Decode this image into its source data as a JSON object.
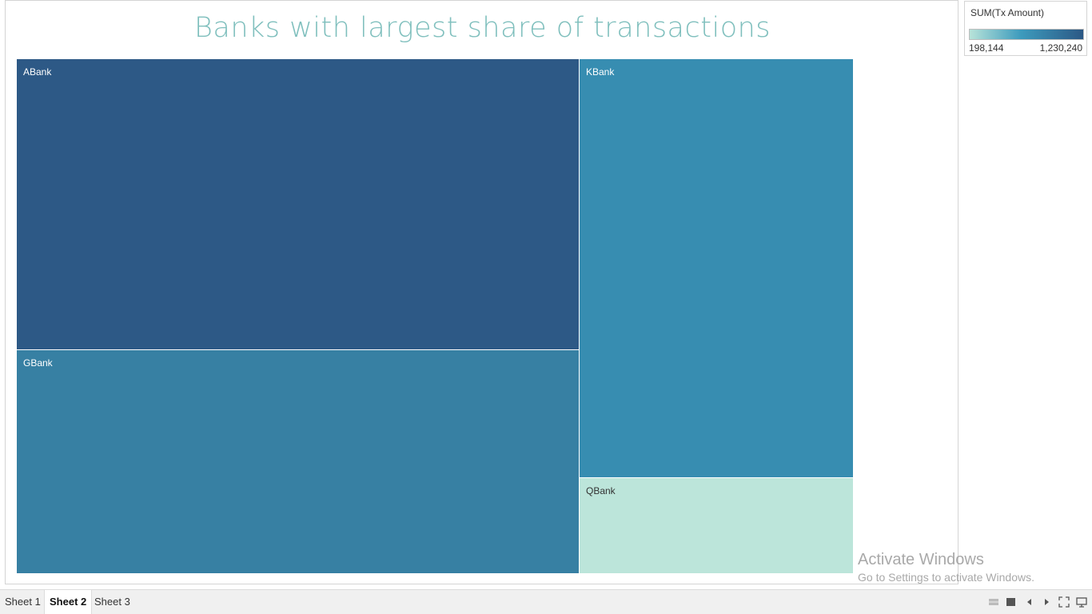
{
  "chart_data": {
    "type": "treemap",
    "title": "Banks with largest share of transactions",
    "measure": "SUM(Tx Amount)",
    "items": [
      {
        "label": "ABank",
        "value": 1230240,
        "color": "#2d5986"
      },
      {
        "label": "GBank",
        "value": 860000,
        "color": "#3780a3"
      },
      {
        "label": "KBank",
        "value": 900000,
        "color": "#378db1"
      },
      {
        "label": "QBank",
        "value": 198144,
        "color": "#bce5da"
      }
    ],
    "legend": {
      "title": "SUM(Tx Amount)",
      "min": "198,144",
      "max": "1,230,240",
      "color_low": "#b8e3d9",
      "color_high": "#2b5885"
    }
  },
  "tabs": [
    "Sheet 1",
    "Sheet 2",
    "Sheet 3"
  ],
  "active_tab": "Sheet 2",
  "watermark": {
    "line1": "Activate Windows",
    "line2": "Go to Settings to activate Windows."
  },
  "controls": [
    "grid-view-icon",
    "single-view-icon",
    "prev-icon",
    "next-icon",
    "fullscreen-icon",
    "presentation-icon"
  ]
}
